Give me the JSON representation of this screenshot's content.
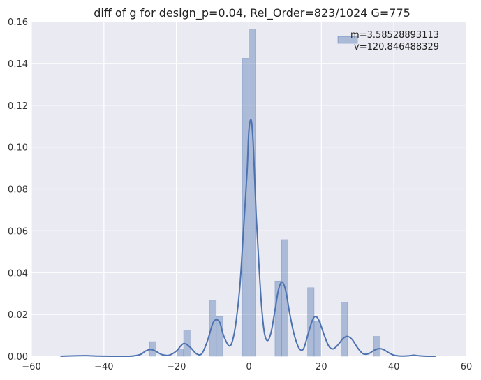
{
  "chart_data": {
    "type": "bar",
    "title": "diff of g for design_p=0.04, Rel_Order=823/1024 G=775",
    "xlabel": "",
    "ylabel": "",
    "xlim": [
      -60,
      60
    ],
    "ylim": [
      0,
      0.16
    ],
    "xticks": [
      -60,
      -40,
      -20,
      0,
      20,
      40,
      60
    ],
    "yticks": [
      0.0,
      0.02,
      0.04,
      0.06,
      0.08,
      0.1,
      0.12,
      0.14,
      0.16
    ],
    "ytick_labels": [
      "0.00",
      "0.02",
      "0.04",
      "0.06",
      "0.08",
      "0.10",
      "0.12",
      "0.14",
      "0.16"
    ],
    "xtick_labels": [
      "−60",
      "−40",
      "−20",
      "0",
      "20",
      "40",
      "60"
    ],
    "grid": true,
    "legend_position": "top-right",
    "histogram": {
      "legend_label": "m=3.58528893113\n v=120.846488329",
      "color": "#4c72b0",
      "bins": [
        {
          "x0": -27.4,
          "x1": -25.6,
          "value": 0.007
        },
        {
          "x0": -19.8,
          "x1": -18.0,
          "value": 0.0035
        },
        {
          "x0": -18.0,
          "x1": -16.2,
          "value": 0.0125
        },
        {
          "x0": -10.8,
          "x1": -9.0,
          "value": 0.0268
        },
        {
          "x0": -9.0,
          "x1": -7.2,
          "value": 0.019
        },
        {
          "x0": -1.8,
          "x1": 0.0,
          "value": 0.1425
        },
        {
          "x0": 0.0,
          "x1": 1.8,
          "value": 0.1565
        },
        {
          "x0": 7.2,
          "x1": 9.0,
          "value": 0.036
        },
        {
          "x0": 9.0,
          "x1": 10.8,
          "value": 0.0558
        },
        {
          "x0": 16.2,
          "x1": 18.0,
          "value": 0.0328
        },
        {
          "x0": 18.0,
          "x1": 19.8,
          "value": 0.0168
        },
        {
          "x0": 25.4,
          "x1": 27.2,
          "value": 0.0258
        },
        {
          "x0": 34.4,
          "x1": 36.2,
          "value": 0.0095
        }
      ]
    },
    "kde": {
      "color": "#4c72b0",
      "points": [
        [
          -52,
          0.0
        ],
        [
          -48,
          0.0002
        ],
        [
          -45,
          0.0003
        ],
        [
          -42,
          0.0001
        ],
        [
          -38,
          0.0
        ],
        [
          -33,
          0.0
        ],
        [
          -30,
          0.0008
        ],
        [
          -28.5,
          0.0025
        ],
        [
          -27,
          0.0032
        ],
        [
          -25.5,
          0.0022
        ],
        [
          -24,
          0.0008
        ],
        [
          -22,
          0.0005
        ],
        [
          -20,
          0.0025
        ],
        [
          -18.5,
          0.0055
        ],
        [
          -17.5,
          0.006
        ],
        [
          -16,
          0.004
        ],
        [
          -14.5,
          0.0012
        ],
        [
          -13,
          0.0012
        ],
        [
          -11.5,
          0.007
        ],
        [
          -10,
          0.0155
        ],
        [
          -9,
          0.0175
        ],
        [
          -8,
          0.016
        ],
        [
          -7,
          0.01
        ],
        [
          -5.5,
          0.005
        ],
        [
          -4.5,
          0.0075
        ],
        [
          -3.5,
          0.017
        ],
        [
          -2.5,
          0.033
        ],
        [
          -1.5,
          0.06
        ],
        [
          -0.5,
          0.088
        ],
        [
          0,
          0.108
        ],
        [
          0.7,
          0.1125
        ],
        [
          1.3,
          0.098
        ],
        [
          2,
          0.068
        ],
        [
          2.8,
          0.043
        ],
        [
          3.5,
          0.024
        ],
        [
          4.3,
          0.011
        ],
        [
          5.2,
          0.0075
        ],
        [
          6.2,
          0.012
        ],
        [
          7.2,
          0.022
        ],
        [
          8.2,
          0.032
        ],
        [
          9.2,
          0.0355
        ],
        [
          10.2,
          0.031
        ],
        [
          11.2,
          0.021
        ],
        [
          12.4,
          0.011
        ],
        [
          13.5,
          0.005
        ],
        [
          14.3,
          0.003
        ],
        [
          15.2,
          0.004
        ],
        [
          16.4,
          0.011
        ],
        [
          17.6,
          0.0175
        ],
        [
          18.5,
          0.019
        ],
        [
          19.5,
          0.0165
        ],
        [
          20.8,
          0.01
        ],
        [
          22,
          0.005
        ],
        [
          23.2,
          0.0035
        ],
        [
          24.6,
          0.0055
        ],
        [
          26,
          0.0085
        ],
        [
          27.2,
          0.0095
        ],
        [
          28.5,
          0.008
        ],
        [
          30,
          0.004
        ],
        [
          31.5,
          0.0012
        ],
        [
          33,
          0.0012
        ],
        [
          34.5,
          0.0028
        ],
        [
          35.8,
          0.0036
        ],
        [
          37,
          0.0033
        ],
        [
          38.5,
          0.0018
        ],
        [
          40,
          0.0005
        ],
        [
          42,
          0.0001
        ],
        [
          44,
          0.0002
        ],
        [
          45.5,
          0.0005
        ],
        [
          47,
          0.0002
        ],
        [
          49,
          0.0
        ],
        [
          51.5,
          0.0
        ]
      ]
    }
  }
}
